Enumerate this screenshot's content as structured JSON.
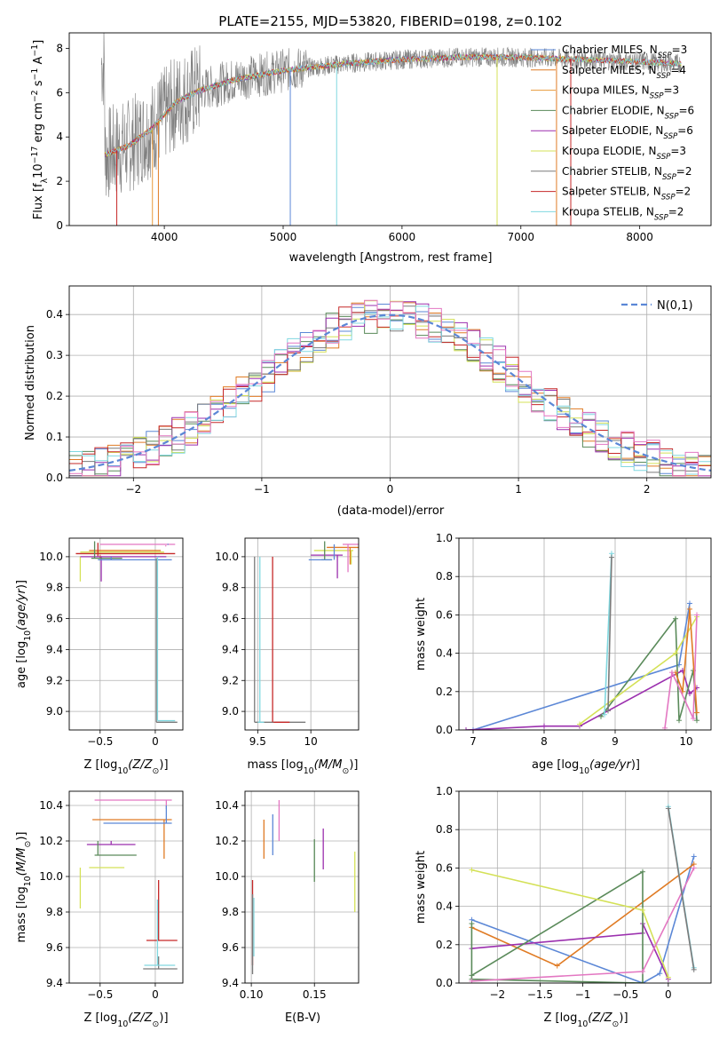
{
  "figure_title": "PLATE=2155, MJD=53820, FIBERID=0198, z=0.102",
  "colors": {
    "Chabrier MILES": "#5b87d6",
    "Salpeter MILES": "#e07b24",
    "Kroupa MILES": "#e89a3a",
    "Chabrier ELODIE": "#5a8a5a",
    "Salpeter ELODIE": "#9b2fae",
    "Kroupa ELODIE": "#d4e157",
    "Chabrier STELIB": "#7a7a7a",
    "Salpeter STELIB": "#c62828",
    "Kroupa STELIB": "#80d8e0",
    "pink": "#e377c2"
  },
  "chart_data": [
    {
      "id": "spectrum",
      "type": "line",
      "title": "PLATE=2155, MJD=53820, FIBERID=0198, z=0.102",
      "xlabel": "wavelength [Angstrom, rest frame]",
      "ylabel": "Flux [f_λ 10^-17 erg cm^-2 s^-1 A^-1]",
      "xlim": [
        3200,
        8600
      ],
      "ylim": [
        0,
        8.7
      ],
      "xticks": [
        4000,
        5000,
        6000,
        7000,
        8000
      ],
      "yticks": [
        0,
        2,
        4,
        6,
        8
      ],
      "legend": [
        {
          "name": "Chabrier MILES",
          "nssp": "3"
        },
        {
          "name": "Salpeter MILES",
          "nssp": "4"
        },
        {
          "name": "Kroupa MILES",
          "nssp": "3"
        },
        {
          "name": "Chabrier ELODIE",
          "nssp": "6"
        },
        {
          "name": "Salpeter ELODIE",
          "nssp": "6"
        },
        {
          "name": "Kroupa ELODIE",
          "nssp": "3"
        },
        {
          "name": "Chabrier STELIB",
          "nssp": "2"
        },
        {
          "name": "Salpeter STELIB",
          "nssp": "2"
        },
        {
          "name": "Kroupa STELIB",
          "nssp": "2"
        }
      ],
      "continuum": [
        [
          3500,
          3.2
        ],
        [
          3700,
          3.6
        ],
        [
          3900,
          4.4
        ],
        [
          4100,
          5.6
        ],
        [
          4300,
          6.1
        ],
        [
          4600,
          6.6
        ],
        [
          5000,
          7.0
        ],
        [
          5500,
          7.3
        ],
        [
          6000,
          7.5
        ],
        [
          6500,
          7.6
        ],
        [
          7000,
          7.6
        ],
        [
          7500,
          7.5
        ],
        [
          8000,
          7.4
        ],
        [
          8350,
          7.3
        ]
      ],
      "spikes": [
        [
          3600,
          0
        ],
        [
          3900,
          0
        ],
        [
          3950,
          0
        ],
        [
          5060,
          0
        ],
        [
          5450,
          0
        ],
        [
          6800,
          0
        ],
        [
          7300,
          0
        ],
        [
          7420,
          0
        ]
      ]
    },
    {
      "id": "residuals",
      "type": "line",
      "xlabel": "(data-model)/error",
      "ylabel": "Normed distribution",
      "xlim": [
        -2.5,
        2.5
      ],
      "ylim": [
        0,
        0.47
      ],
      "xticks": [
        -2,
        -1,
        0,
        1,
        2
      ],
      "yticks": [
        0.0,
        0.1,
        0.2,
        0.3,
        0.4
      ],
      "legend_label": "N(0,1)"
    },
    {
      "id": "age_vs_Z",
      "type": "scatter",
      "xlabel": "Z [log10(Z/Z_sun)]",
      "ylabel": "age [log10(age/yr)]",
      "xlim": [
        -0.78,
        0.25
      ],
      "ylim": [
        8.88,
        10.12
      ],
      "xticks": [
        -0.5,
        0.0
      ],
      "yticks": [
        9.0,
        9.2,
        9.4,
        9.6,
        9.8,
        10.0
      ]
    },
    {
      "id": "age_vs_mass",
      "type": "scatter",
      "xlabel": "mass [log10(M/M_sun)]",
      "xlim": [
        9.38,
        10.45
      ],
      "ylim": [
        8.88,
        10.12
      ],
      "xticks": [
        9.5,
        10.0
      ],
      "yticks": [
        9.0,
        9.2,
        9.4,
        9.6,
        9.8,
        10.0
      ]
    },
    {
      "id": "weight_vs_age",
      "type": "line",
      "xlabel": "age [log10(age/yr)]",
      "ylabel": "mass weight",
      "xlim": [
        6.8,
        10.35
      ],
      "ylim": [
        0,
        1.0
      ],
      "xticks": [
        7,
        8,
        9,
        10
      ],
      "yticks": [
        0.0,
        0.2,
        0.4,
        0.6,
        0.8,
        1.0
      ]
    },
    {
      "id": "mass_vs_Z",
      "type": "scatter",
      "xlabel": "Z [log10(Z/Z_sun)]",
      "ylabel": "mass [log10(M/M_sun)]",
      "xlim": [
        -0.78,
        0.25
      ],
      "ylim": [
        9.4,
        10.48
      ],
      "xticks": [
        -0.5,
        0.0
      ],
      "yticks": [
        9.4,
        9.6,
        9.8,
        10.0,
        10.2,
        10.4
      ]
    },
    {
      "id": "mass_vs_ebv",
      "type": "scatter",
      "xlabel": "E(B-V)",
      "xlim": [
        0.095,
        0.185
      ],
      "ylim": [
        9.4,
        10.48
      ],
      "xticks": [
        0.1,
        0.15
      ],
      "yticks": [
        9.4,
        9.6,
        9.8,
        10.0,
        10.2,
        10.4
      ]
    },
    {
      "id": "weight_vs_Z",
      "type": "line",
      "xlabel": "Z [log10(Z/Z_sun)]",
      "ylabel": "mass weight",
      "xlim": [
        -2.45,
        0.5
      ],
      "ylim": [
        0,
        1.0
      ],
      "xticks": [
        -2.0,
        -1.5,
        -1.0,
        -0.5,
        0.0
      ],
      "yticks": [
        0.0,
        0.2,
        0.4,
        0.6,
        0.8,
        1.0
      ]
    }
  ]
}
